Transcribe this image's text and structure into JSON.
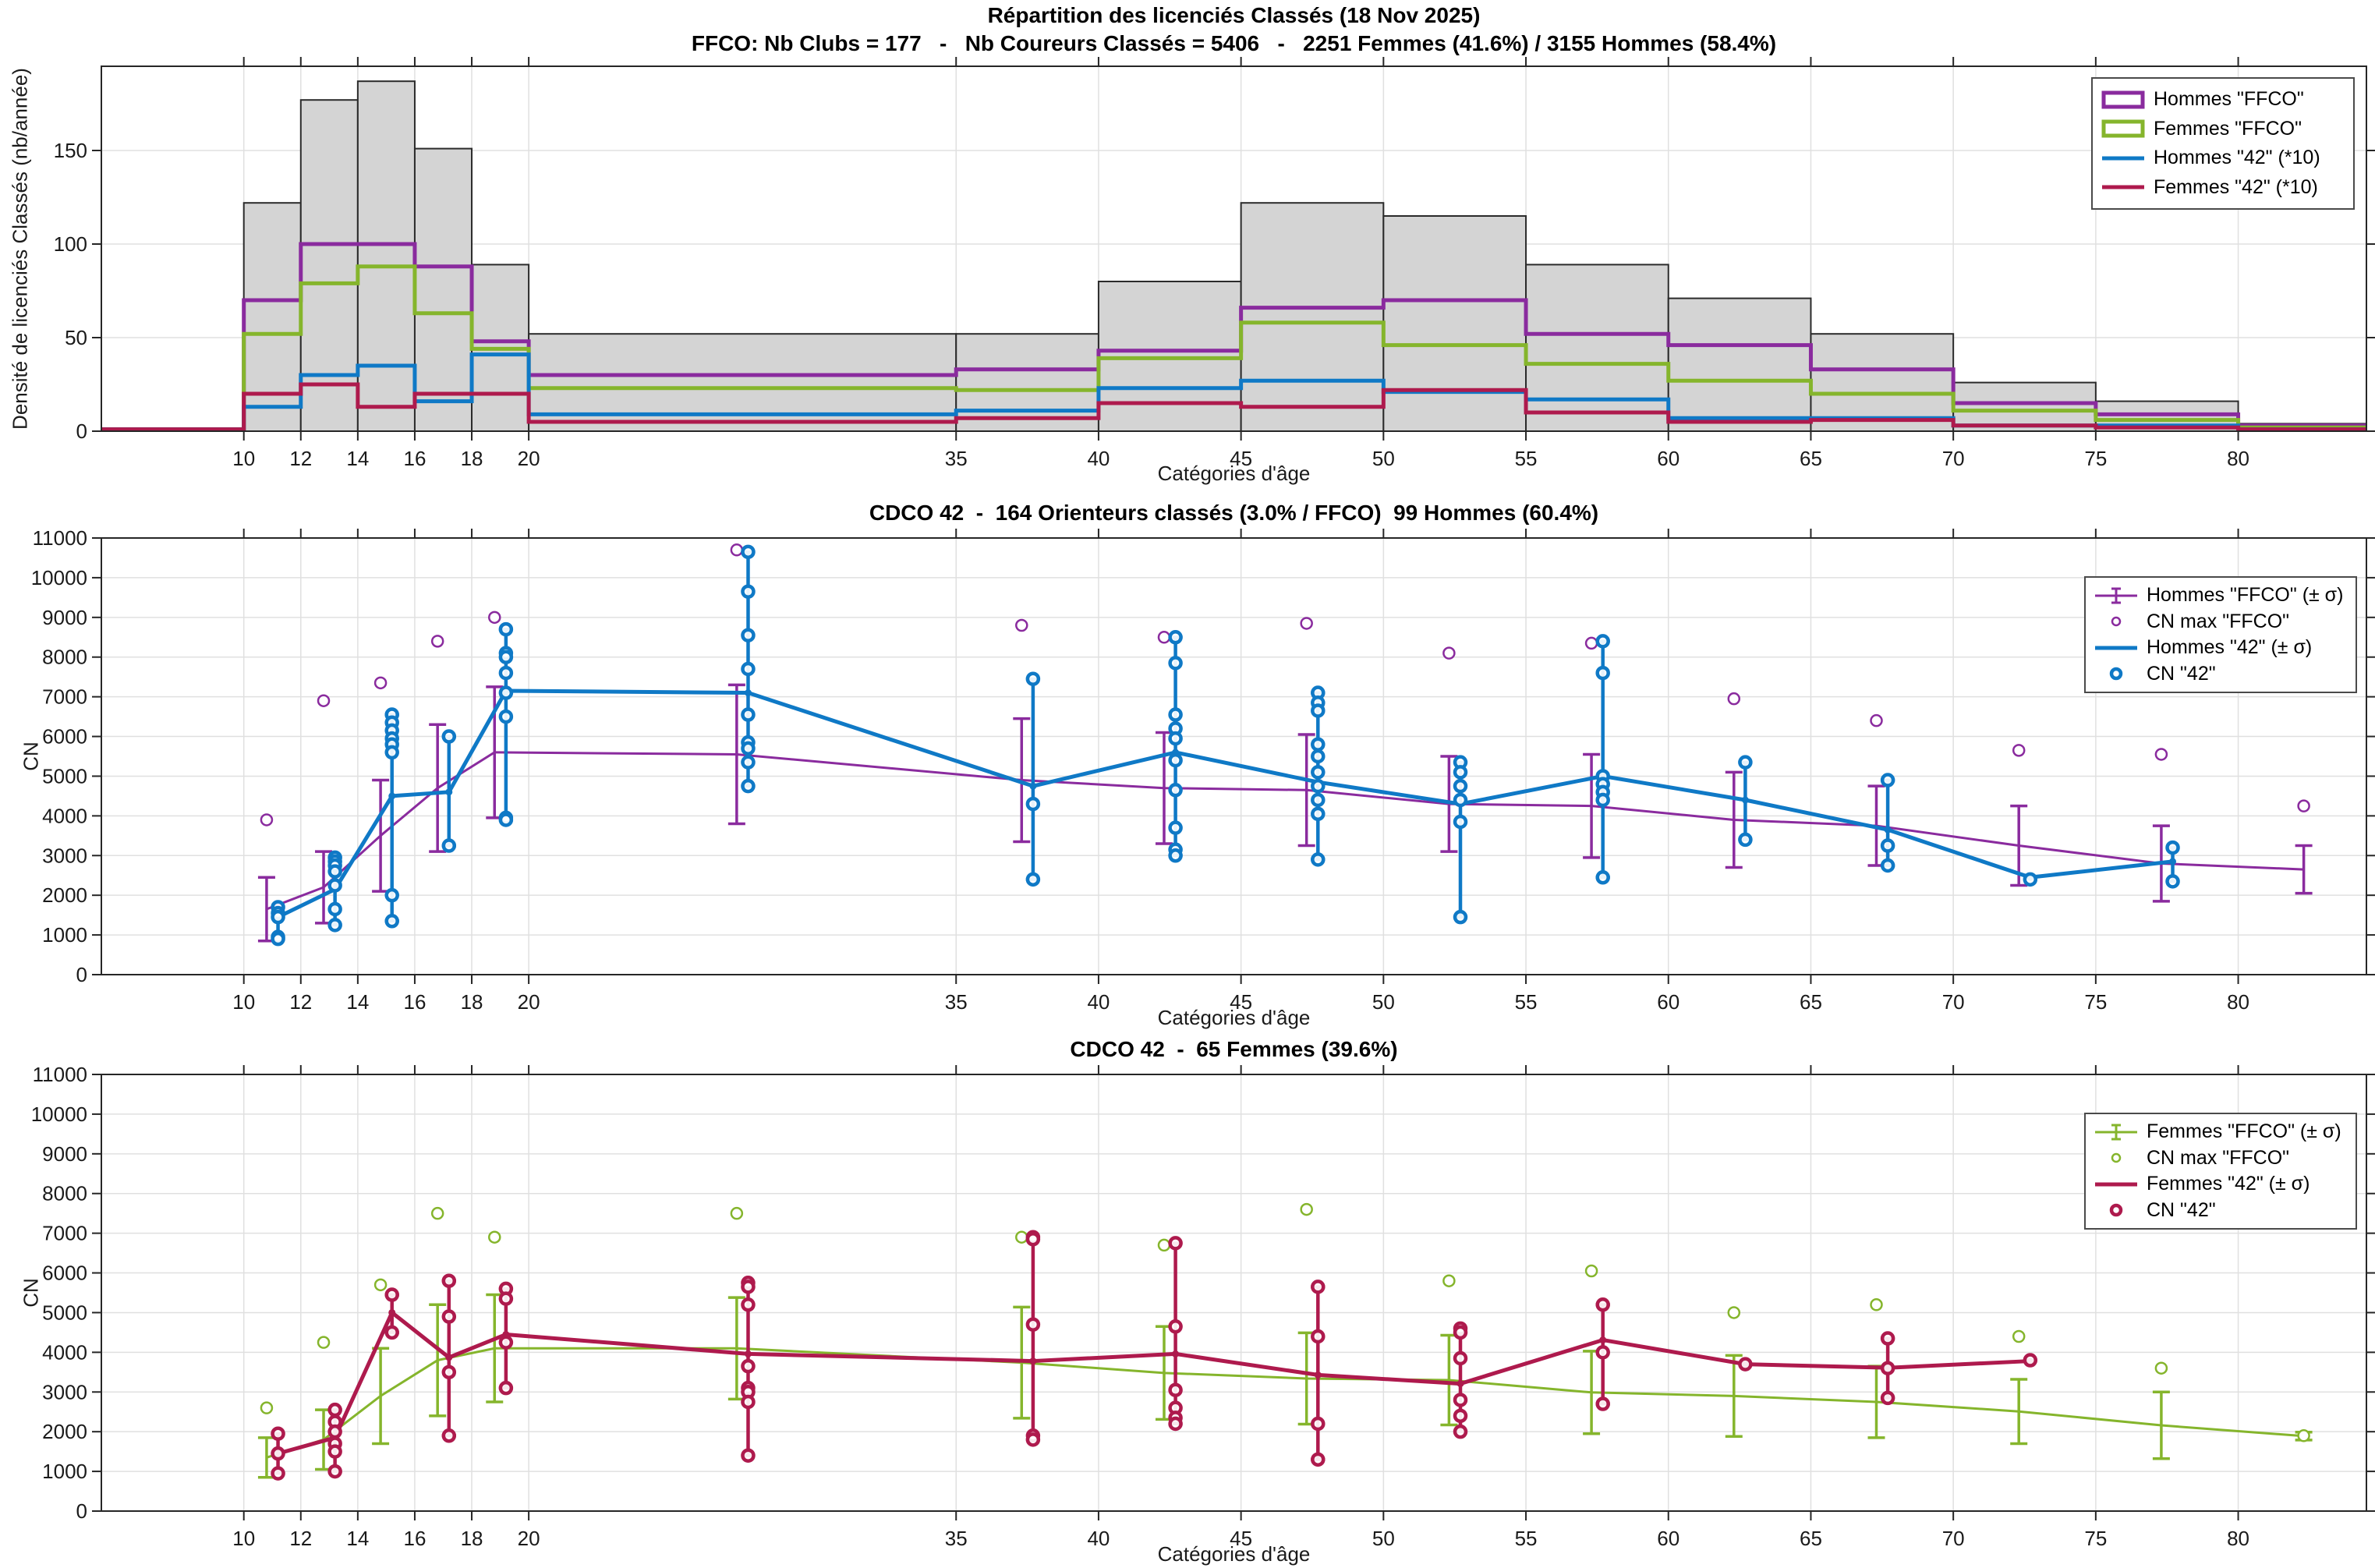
{
  "colors": {
    "hommes_ffco": "#8A2B9E",
    "femmes_ffco": "#85B52C",
    "hommes_42": "#0F79C6",
    "femmes_42": "#AE1A4D",
    "histogram_fill": "#D4D4D4",
    "histogram_edge": "#2B2B2B",
    "grid": "#E0E0E0",
    "axis": "#262626"
  },
  "chart_data": [
    {
      "id": "repartition",
      "type": "step-histogram",
      "title": "Répartition des licenciés Classés (18 Nov 2025)",
      "subtitle": "FFCO: Nb Clubs = 177   -   Nb Coureurs Classés = 5406   -   2251 Femmes (41.6%) / 3155 Hommes (58.4%)",
      "xlabel": "Catégories d'âge",
      "ylabel": "Densité de licenciés Classés (nb/année)",
      "xlim": [
        5,
        84.5
      ],
      "ylim": [
        0,
        195
      ],
      "xticks": [
        10,
        12,
        14,
        16,
        18,
        20,
        35,
        40,
        45,
        50,
        55,
        60,
        65,
        70,
        75,
        80
      ],
      "yticks": [
        0,
        50,
        100,
        150
      ],
      "grid": true,
      "legend_position": "top-right",
      "bin_edges": [
        5,
        10,
        12,
        14,
        16,
        18,
        20,
        35,
        40,
        45,
        50,
        55,
        60,
        65,
        70,
        75,
        80,
        84.5
      ],
      "total_histogram": [
        1,
        122,
        177,
        187,
        151,
        89,
        52,
        52,
        80,
        122,
        115,
        89,
        71,
        52,
        26,
        16,
        4
      ],
      "series": [
        {
          "name": "Hommes \"FFCO\"",
          "color_key": "hommes_ffco",
          "values": [
            1,
            70,
            100,
            100,
            88,
            48,
            30,
            33,
            43,
            66,
            70,
            52,
            46,
            33,
            15,
            9,
            3
          ]
        },
        {
          "name": "Femmes \"FFCO\"",
          "color_key": "femmes_ffco",
          "values": [
            1,
            52,
            79,
            88,
            63,
            44,
            23,
            22,
            39,
            58,
            46,
            36,
            27,
            20,
            11,
            6,
            2
          ]
        },
        {
          "name": "Hommes \"42\" (*10)",
          "color_key": "hommes_42",
          "values": [
            1,
            13,
            30,
            35,
            16,
            41,
            9,
            11,
            23,
            27,
            21,
            17,
            7,
            7,
            3,
            3,
            1
          ]
        },
        {
          "name": "Femmes \"42\" (*10)",
          "color_key": "femmes_42",
          "values": [
            1,
            20,
            25,
            13,
            20,
            20,
            5,
            7,
            15,
            13,
            22,
            10,
            5,
            6,
            3,
            2,
            1
          ]
        }
      ],
      "legend": [
        "Hommes \"FFCO\"",
        "Femmes \"FFCO\"",
        "Hommes \"42\" (*10)",
        "Femmes \"42\" (*10)"
      ]
    },
    {
      "id": "hommes",
      "type": "errorbar-scatter",
      "title": "CDCO 42  -  164 Orienteurs classés (3.0% / FFCO)  99 Hommes (60.4%)",
      "xlabel": "Catégories d'âge",
      "ylabel": "CN",
      "xlim": [
        5,
        84.5
      ],
      "ylim": [
        0,
        11000
      ],
      "xticks": [
        10,
        12,
        14,
        16,
        18,
        20,
        35,
        40,
        45,
        50,
        55,
        60,
        65,
        70,
        75,
        80
      ],
      "yticks": [
        0,
        1000,
        2000,
        3000,
        4000,
        5000,
        6000,
        7000,
        8000,
        9000,
        10000,
        11000
      ],
      "grid": true,
      "legend_position": "top-right",
      "legend": [
        "Hommes \"FFCO\" (± σ)",
        "CN max \"FFCO\"",
        "Hommes \"42\" (± σ)",
        "CN \"42\""
      ],
      "ffco": {
        "label": "Hommes \"FFCO\" (± σ)",
        "max_label": "CN max \"FFCO\"",
        "color_key": "hommes_ffco",
        "ages": [
          11,
          13,
          15,
          17,
          19,
          27.5,
          37.5,
          42.5,
          47.5,
          52.5,
          57.5,
          62.5,
          67.5,
          72.5,
          77.5,
          82.5
        ],
        "mean": [
          1650,
          2200,
          3500,
          4700,
          5600,
          5550,
          4900,
          4700,
          4650,
          4300,
          4250,
          3900,
          3750,
          3250,
          2800,
          2650
        ],
        "sigma": [
          800,
          900,
          1400,
          1600,
          1650,
          1750,
          1550,
          1400,
          1400,
          1200,
          1300,
          1200,
          1000,
          1000,
          950,
          600
        ],
        "cn_max": [
          3900,
          6900,
          7350,
          8400,
          9000,
          10700,
          8800,
          8500,
          8850,
          8100,
          8350,
          6950,
          6400,
          5650,
          5550,
          4250
        ]
      },
      "cdco": {
        "label": "Hommes \"42\" (± σ)",
        "points_label": "CN \"42\"",
        "color_key": "hommes_42",
        "ages": [
          11,
          13,
          15,
          17,
          19,
          27.5,
          37.5,
          42.5,
          47.5,
          52.5,
          57.5,
          62.5,
          67.5,
          72.5,
          77.5
        ],
        "mean": [
          1450,
          2150,
          4500,
          4600,
          7150,
          7100,
          4750,
          5600,
          4850,
          4300,
          5000,
          4400,
          3650,
          2450,
          2850
        ],
        "points": [
          [
            1700,
            1550,
            1450,
            950,
            900
          ],
          [
            2950,
            2850,
            2750,
            2600,
            2250,
            1650,
            1250
          ],
          [
            6550,
            6350,
            6150,
            5950,
            5800,
            5600,
            2000,
            1350
          ],
          [
            6000,
            3250
          ],
          [
            8700,
            8100,
            8000,
            7600,
            7100,
            6500,
            3950,
            3900
          ],
          [
            10650,
            9650,
            8550,
            7700,
            6550,
            5850,
            5700,
            5350,
            4750
          ],
          [
            7450,
            4300,
            2400
          ],
          [
            8500,
            7850,
            6550,
            6200,
            5950,
            5400,
            4650,
            3700,
            3150,
            3000
          ],
          [
            7100,
            6850,
            6650,
            5800,
            5500,
            5100,
            4750,
            4400,
            4050,
            2900
          ],
          [
            5350,
            5100,
            4750,
            4400,
            3850,
            1450
          ],
          [
            8400,
            7600,
            5000,
            4800,
            4600,
            4400,
            2450
          ],
          [
            5350,
            3400
          ],
          [
            4900,
            3250,
            2750
          ],
          [
            2400
          ],
          [
            3200,
            2350
          ]
        ]
      }
    },
    {
      "id": "femmes",
      "type": "errorbar-scatter",
      "title": "CDCO 42  -  65 Femmes (39.6%)",
      "xlabel": "Catégories d'âge",
      "ylabel": "CN",
      "xlim": [
        5,
        84.5
      ],
      "ylim": [
        0,
        11000
      ],
      "xticks": [
        10,
        12,
        14,
        16,
        18,
        20,
        35,
        40,
        45,
        50,
        55,
        60,
        65,
        70,
        75,
        80
      ],
      "yticks": [
        0,
        1000,
        2000,
        3000,
        4000,
        5000,
        6000,
        7000,
        8000,
        9000,
        10000,
        11000
      ],
      "grid": true,
      "legend_position": "top-right",
      "legend": [
        "Femmes \"FFCO\" (± σ)",
        "CN max \"FFCO\"",
        "Femmes \"42\" (± σ)",
        "CN \"42\""
      ],
      "ffco": {
        "label": "Femmes \"FFCO\" (± σ)",
        "max_label": "CN max \"FFCO\"",
        "color_key": "femmes_ffco",
        "ages": [
          11,
          13,
          15,
          17,
          19,
          27.5,
          37.5,
          42.5,
          47.5,
          52.5,
          57.5,
          62.5,
          67.5,
          72.5,
          77.5,
          82.5
        ],
        "mean": [
          1350,
          1800,
          2900,
          3800,
          4100,
          4100,
          3740,
          3480,
          3340,
          3300,
          2990,
          2900,
          2750,
          2510,
          2160,
          1890
        ],
        "sigma": [
          500,
          750,
          1200,
          1400,
          1350,
          1280,
          1400,
          1170,
          1150,
          1130,
          1040,
          1020,
          900,
          810,
          840,
          100
        ],
        "cn_max": [
          2600,
          4250,
          5700,
          7500,
          6900,
          7500,
          6900,
          6700,
          7600,
          5800,
          6050,
          5000,
          5200,
          4400,
          3600,
          1900
        ]
      },
      "cdco": {
        "label": "Femmes \"42\" (± σ)",
        "points_label": "CN \"42\"",
        "color_key": "femmes_42",
        "ages": [
          11,
          13,
          15,
          17,
          19,
          27.5,
          37.5,
          42.5,
          47.5,
          52.5,
          57.5,
          62.5,
          67.5,
          72.5
        ],
        "mean": [
          1450,
          1850,
          5000,
          3870,
          4450,
          3960,
          3780,
          3960,
          3430,
          3210,
          4310,
          3700,
          3610,
          3780
        ],
        "points": [
          [
            1950,
            1450,
            950
          ],
          [
            2550,
            2250,
            2000,
            1700,
            1500,
            1000
          ],
          [
            5450,
            4500
          ],
          [
            5800,
            4900,
            3500,
            1900
          ],
          [
            5600,
            5350,
            4250,
            3100
          ],
          [
            5750,
            5650,
            5200,
            3650,
            3100,
            3000,
            2750,
            1400
          ],
          [
            6900,
            6850,
            4700,
            1900,
            1800
          ],
          [
            6750,
            4650,
            3050,
            2600,
            2350,
            2200
          ],
          [
            5650,
            4400,
            2200,
            1300
          ],
          [
            4600,
            4500,
            3850,
            2800,
            2400,
            2000
          ],
          [
            5200,
            4000,
            2700
          ],
          [
            3700
          ],
          [
            4350,
            3600,
            2850
          ],
          [
            3800
          ]
        ]
      }
    }
  ]
}
